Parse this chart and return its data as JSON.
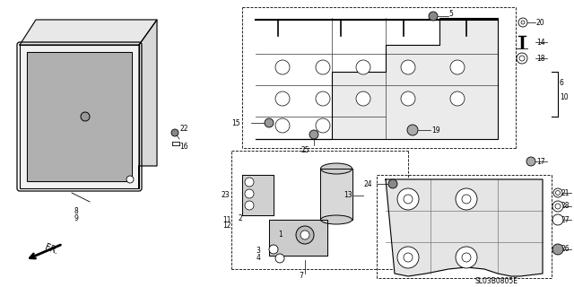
{
  "bg_color": "#ffffff",
  "lc": "#000000",
  "code": "SL03B0805E",
  "figsize": [
    6.4,
    3.2
  ],
  "dpi": 100
}
